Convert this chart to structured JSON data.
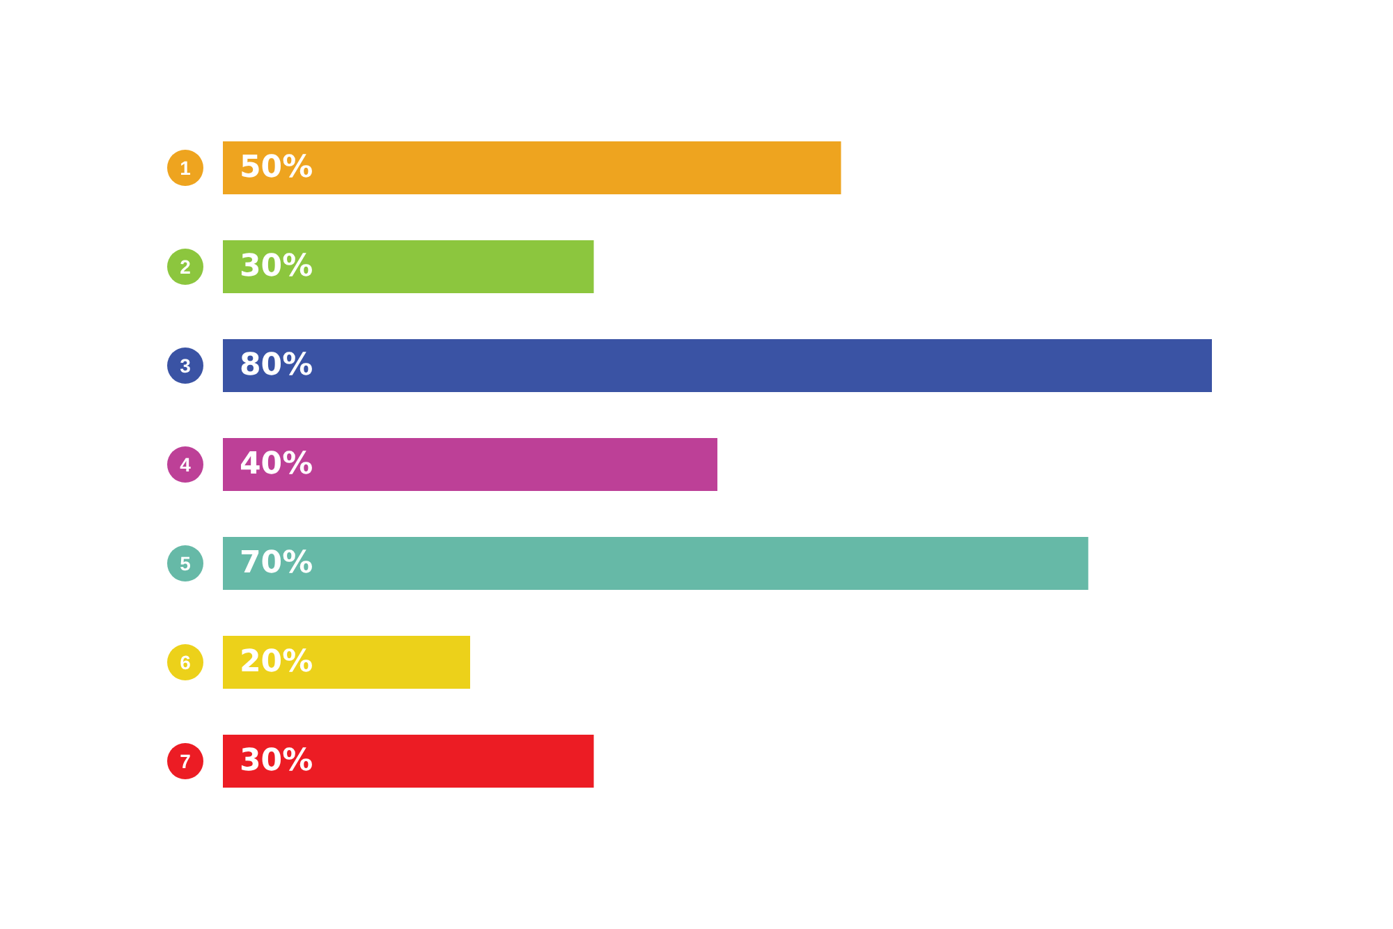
{
  "chart_data": {
    "type": "bar",
    "orientation": "horizontal",
    "categories": [
      "1",
      "2",
      "3",
      "4",
      "5",
      "6",
      "7"
    ],
    "values": [
      50,
      30,
      80,
      40,
      70,
      20,
      30
    ],
    "colors": [
      "#eea41f",
      "#8cc63e",
      "#3a53a4",
      "#bd4097",
      "#66b9a7",
      "#ecd11a",
      "#ec1c24"
    ],
    "value_labels": [
      "50%",
      "30%",
      "80%",
      "40%",
      "70%",
      "20%",
      "30%"
    ],
    "grid": false
  }
}
